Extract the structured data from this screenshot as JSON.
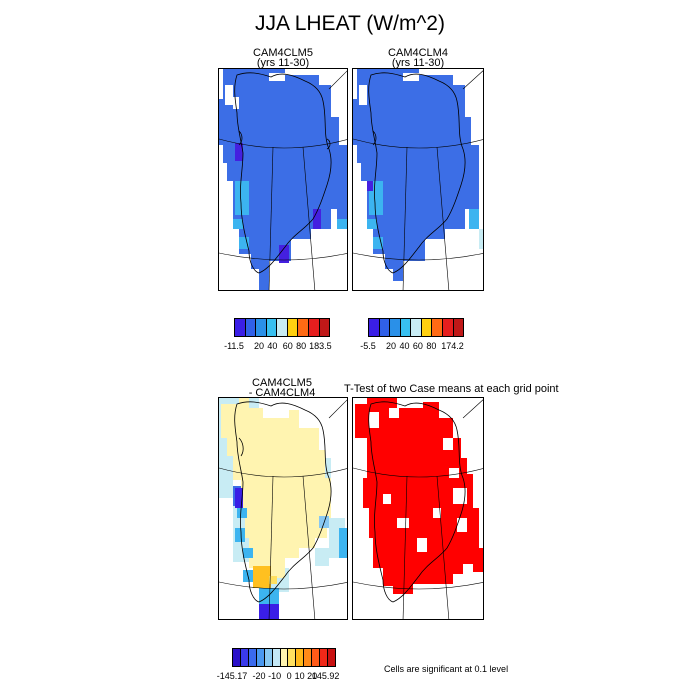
{
  "title": "JJA LHEAT (W/m^2)",
  "panels": {
    "p1": {
      "title_line1": "CAM4CLM5",
      "title_line2": "(yrs 11-30)"
    },
    "p2": {
      "title_line1": "CAM4CLM4",
      "title_line2": "(yrs 11-30)"
    },
    "p3": {
      "title_line1": "CAM4CLM5",
      "title_line2": "- CAM4CLM4"
    },
    "p4": {
      "title": "T-Test of two Case means at each grid point"
    }
  },
  "colorbars": {
    "cb1": {
      "colors": [
        "#3a1ee6",
        "#3060e8",
        "#2a90e8",
        "#38c0f0",
        "#c8ecf4",
        "#ffd010",
        "#ff6a14",
        "#e61e1e",
        "#c01818"
      ],
      "labels": [
        "-11.5",
        "20",
        "40",
        "60",
        "80",
        "183.5"
      ]
    },
    "cb2": {
      "colors": [
        "#3a1ee6",
        "#3060e8",
        "#2a90e8",
        "#38c0f0",
        "#c8ecf4",
        "#ffd010",
        "#ff6a14",
        "#e61e1e",
        "#c01818"
      ],
      "labels": [
        "-5.5",
        "20",
        "40",
        "60",
        "80",
        "174.2"
      ]
    },
    "cb3": {
      "colors": [
        "#2a10c8",
        "#3a3aea",
        "#3a6aee",
        "#4a98f0",
        "#88c8f2",
        "#c4e8f6",
        "#fff4b0",
        "#ffe060",
        "#ffb81a",
        "#ff8a18",
        "#ff5a18",
        "#f02818",
        "#c81010"
      ],
      "labels": [
        "-145.17",
        "-20",
        "-10",
        "0",
        "10",
        "20",
        "145.92"
      ]
    }
  },
  "footnote": "Cells are significant at 0.1 level",
  "colors": {
    "blue": "#3c6ee6",
    "dark_blue": "#3a1ee6",
    "light_blue": "#3cb4f0",
    "pale_blue": "#c8ecf4",
    "pale_yellow": "#fff4b0",
    "orange": "#ffc020",
    "red": "#ff0000"
  }
}
